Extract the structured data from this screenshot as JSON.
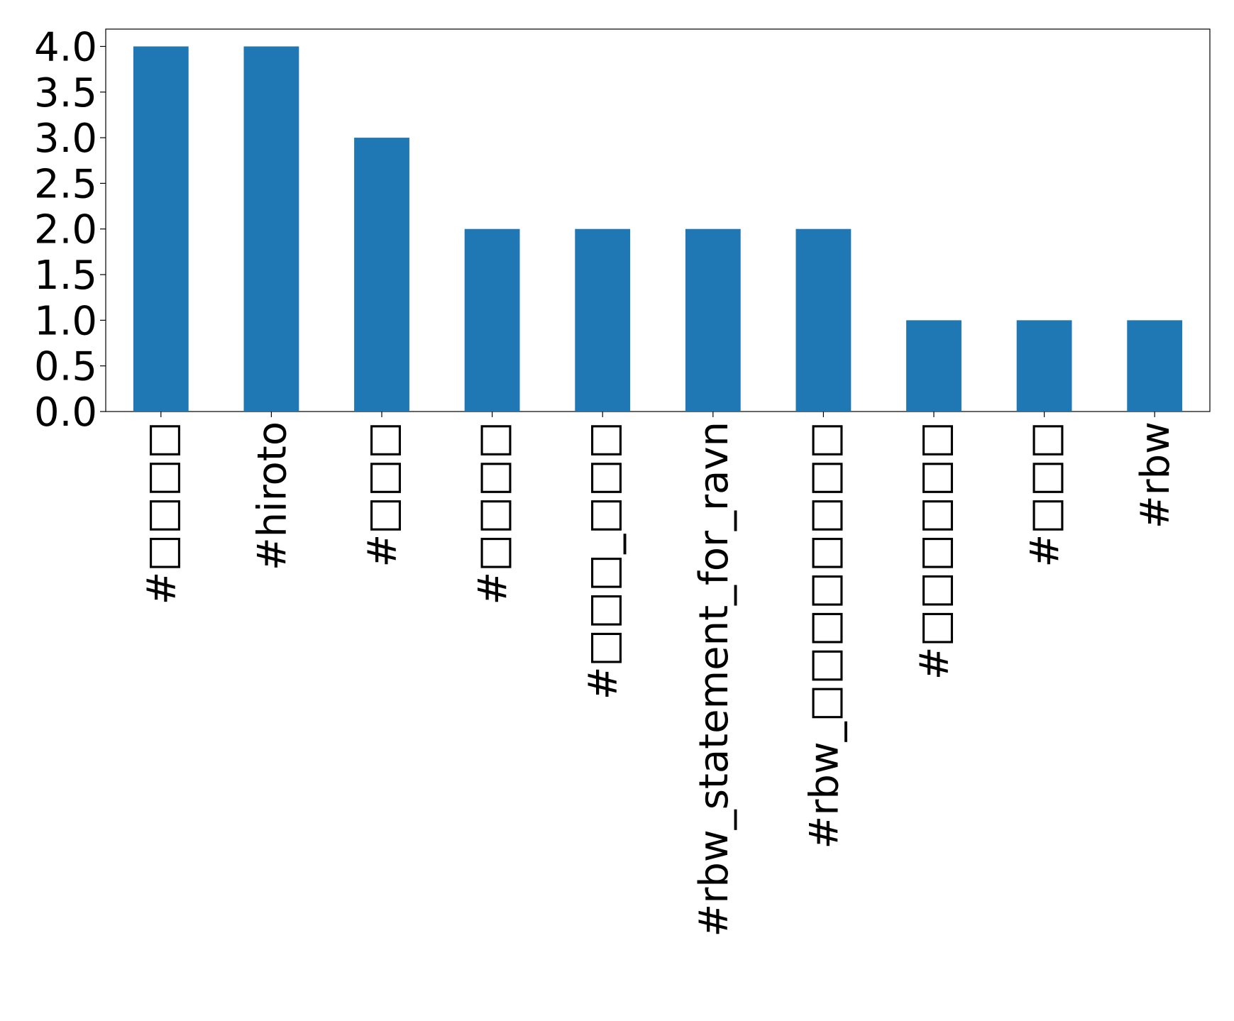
{
  "chart_data": {
    "type": "bar",
    "categories": [
      "#□□□□",
      "#hiroto",
      "#□□□",
      "#□□□□",
      "#□□□_□□□",
      "#rbw_statement_for_ravn",
      "#rbw_□□□□□□□□",
      "#□□□□□□",
      "#□□□",
      "#rbw"
    ],
    "values": [
      4,
      4,
      3,
      2,
      2,
      2,
      2,
      1,
      1,
      1
    ],
    "color": "#1f77b4",
    "ylim": [
      0,
      4.19
    ],
    "yticks": [
      {
        "value": 0,
        "label": "0.0"
      },
      {
        "value": 0.5,
        "label": "0.5"
      },
      {
        "value": 1,
        "label": "1.0"
      },
      {
        "value": 1.5,
        "label": "1.5"
      },
      {
        "value": 2,
        "label": "2.0"
      },
      {
        "value": 2.5,
        "label": "2.5"
      },
      {
        "value": 3,
        "label": "3.0"
      },
      {
        "value": 3.5,
        "label": "3.5"
      },
      {
        "value": 4,
        "label": "4.0"
      }
    ],
    "grid": false
  }
}
